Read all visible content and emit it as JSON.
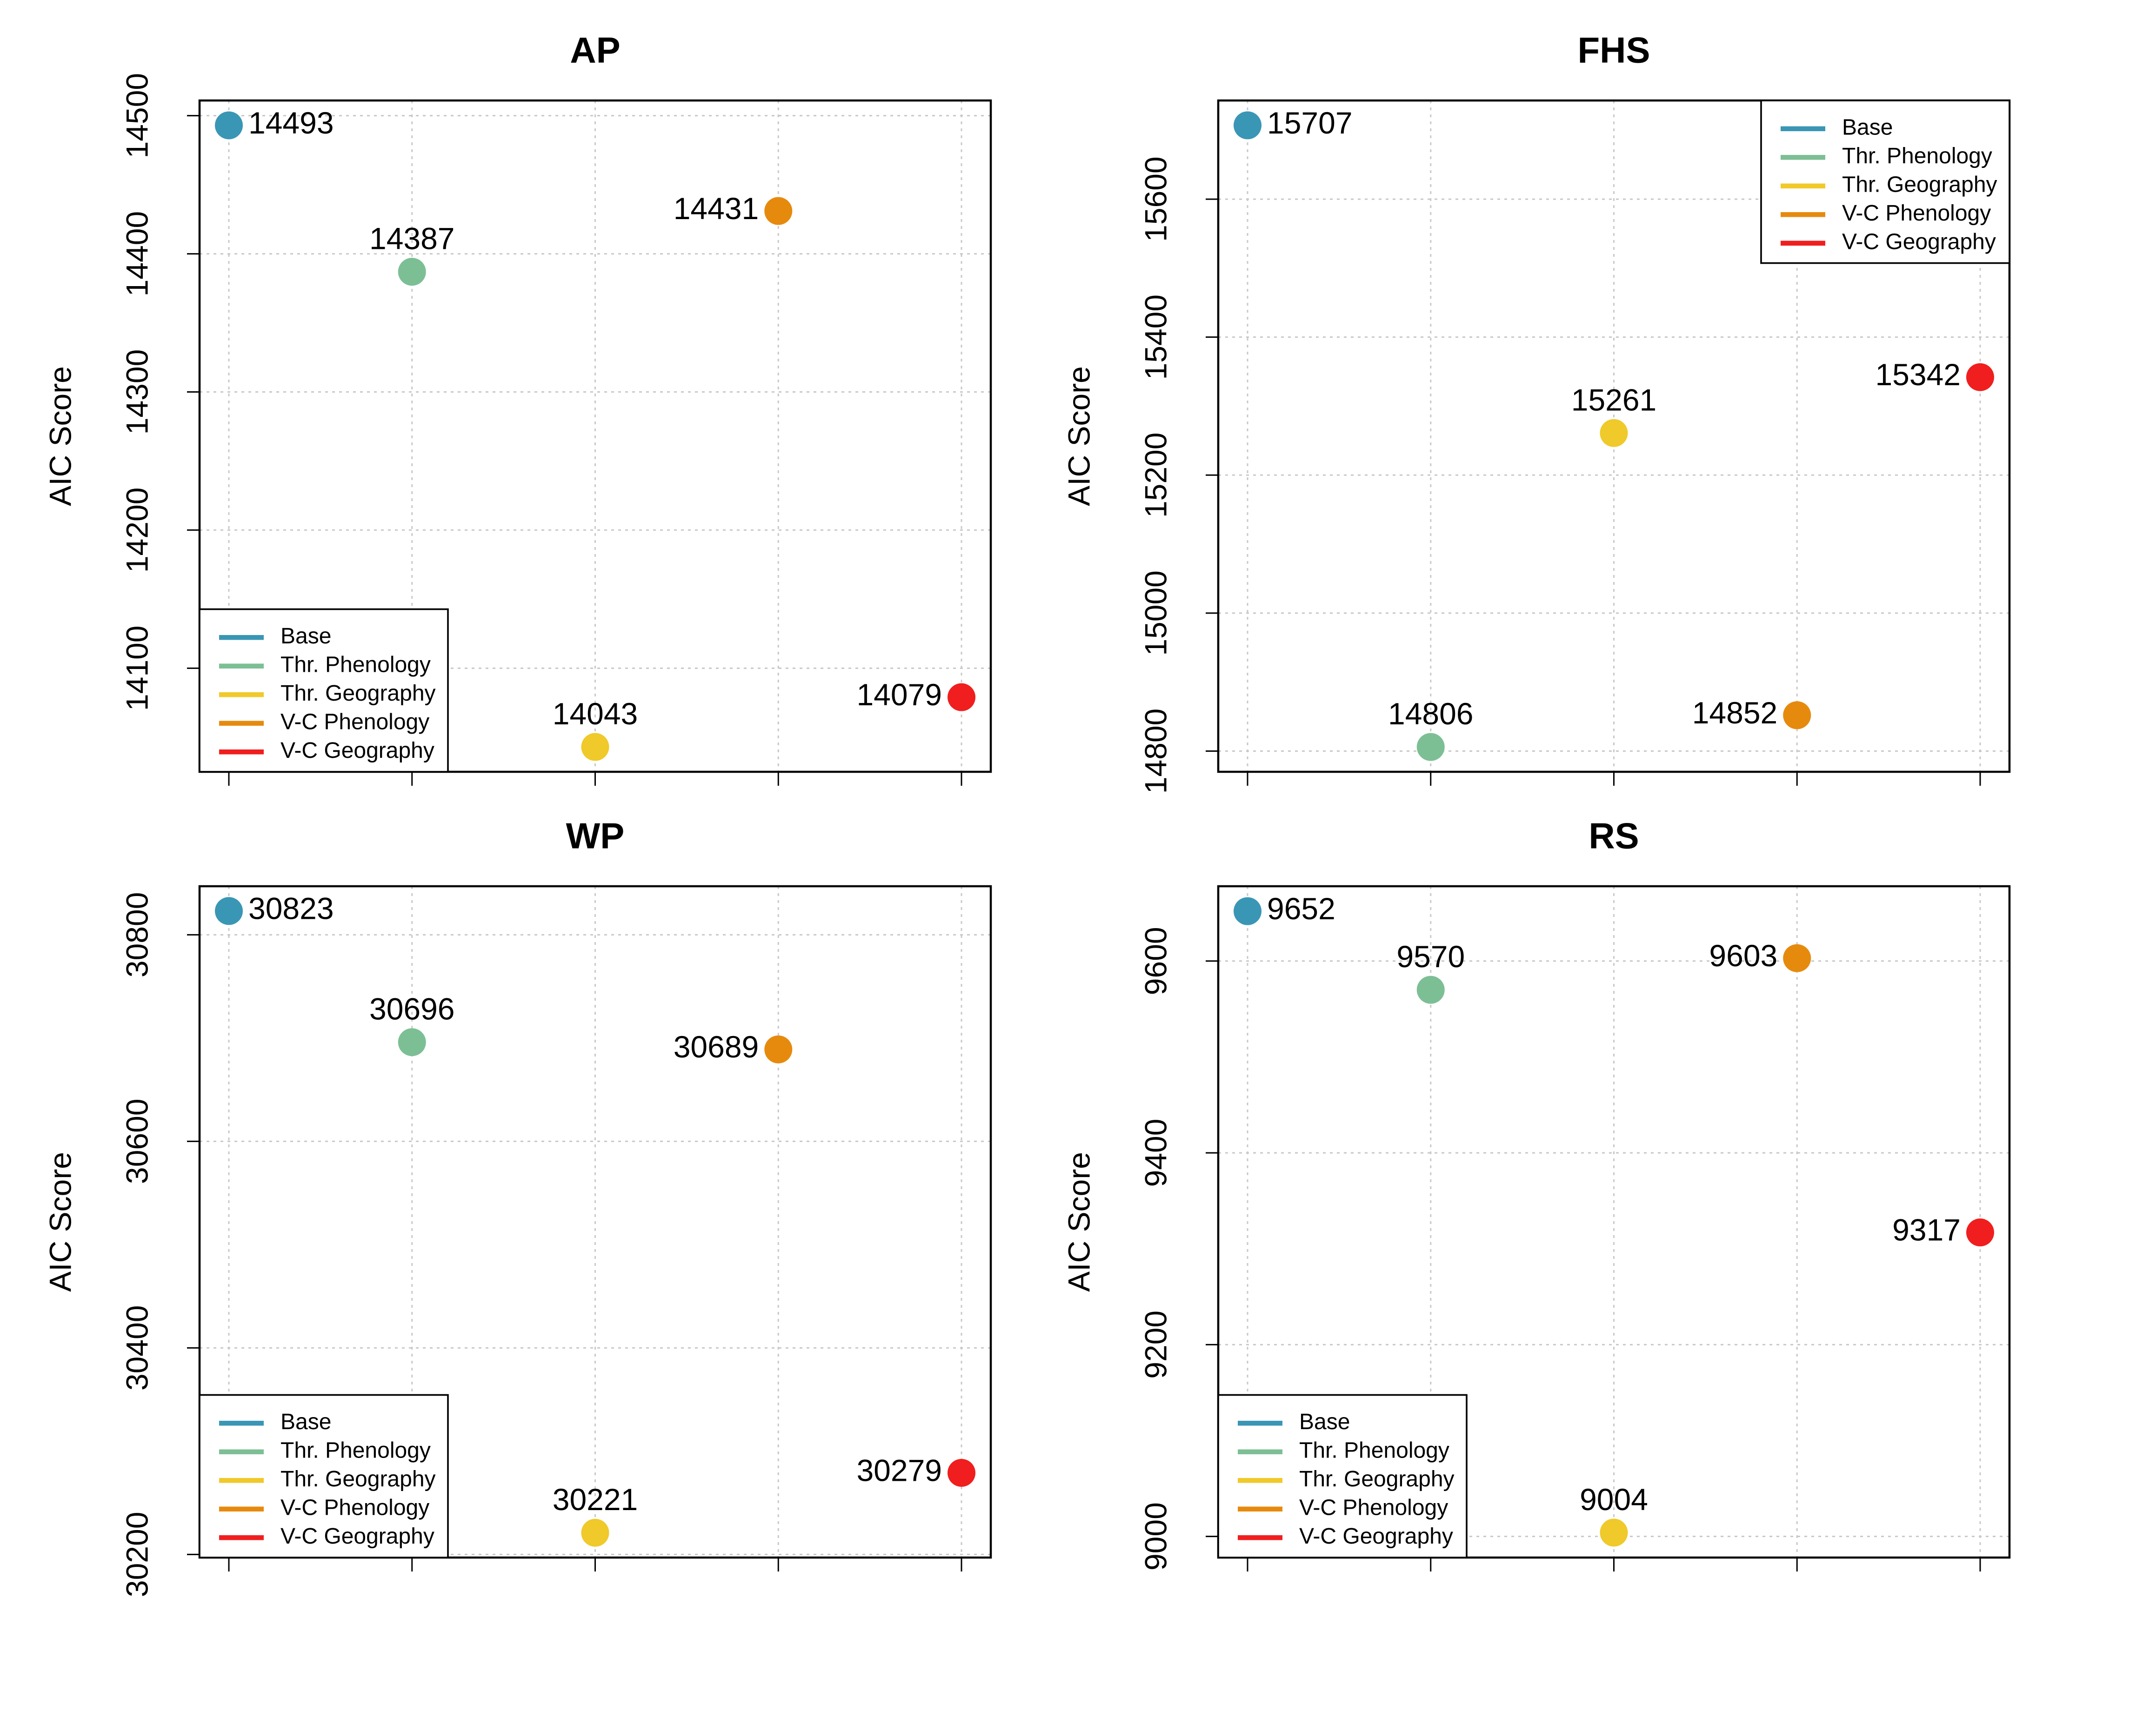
{
  "chart_data": [
    {
      "type": "scatter",
      "title": "AP",
      "y_label": "AIC Score",
      "xlim": [
        0.84,
        5.16
      ],
      "xticks": [
        1,
        2,
        3,
        4,
        5
      ],
      "ylim": [
        14025,
        14511
      ],
      "yticks": [
        14100,
        14200,
        14300,
        14400,
        14500
      ],
      "grid": true,
      "legend": "bottomleft",
      "series": [
        {
          "name": "Base",
          "color": "#3a96b5",
          "x": [
            1
          ],
          "values": [
            14493
          ]
        },
        {
          "name": "Thr. Phenology",
          "color": "#7dbf95",
          "x": [
            2
          ],
          "values": [
            14387
          ]
        },
        {
          "name": "Thr. Geography",
          "color": "#f0c92a",
          "x": [
            3
          ],
          "values": [
            14043
          ]
        },
        {
          "name": "V-C Phenology",
          "color": "#e68a0e",
          "x": [
            4
          ],
          "values": [
            14431
          ]
        },
        {
          "name": "V-C Geography",
          "color": "#f01e1e",
          "x": [
            5
          ],
          "values": [
            14079
          ]
        }
      ]
    },
    {
      "type": "scatter",
      "title": "FHS",
      "y_label": "AIC Score",
      "xlim": [
        0.84,
        5.16
      ],
      "xticks": [
        1,
        2,
        3,
        4,
        5
      ],
      "ylim": [
        14770,
        15743
      ],
      "yticks": [
        14800,
        15000,
        15200,
        15400,
        15600
      ],
      "grid": true,
      "legend": "topright",
      "series": [
        {
          "name": "Base",
          "color": "#3a96b5",
          "x": [
            1
          ],
          "values": [
            15707
          ]
        },
        {
          "name": "Thr. Phenology",
          "color": "#7dbf95",
          "x": [
            2
          ],
          "values": [
            14806
          ]
        },
        {
          "name": "Thr. Geography",
          "color": "#f0c92a",
          "x": [
            3
          ],
          "values": [
            15261
          ]
        },
        {
          "name": "V-C Phenology",
          "color": "#e68a0e",
          "x": [
            4
          ],
          "values": [
            14852
          ]
        },
        {
          "name": "V-C Geography",
          "color": "#f01e1e",
          "x": [
            5
          ],
          "values": [
            15342
          ]
        }
      ]
    },
    {
      "type": "scatter",
      "title": "WP",
      "y_label": "AIC Score",
      "xlim": [
        0.84,
        5.16
      ],
      "xticks": [
        1,
        2,
        3,
        4,
        5
      ],
      "ylim": [
        30197,
        30847
      ],
      "yticks": [
        30200,
        30400,
        30600,
        30800
      ],
      "grid": true,
      "legend": "bottomleft",
      "series": [
        {
          "name": "Base",
          "color": "#3a96b5",
          "x": [
            1
          ],
          "values": [
            30823
          ]
        },
        {
          "name": "Thr. Phenology",
          "color": "#7dbf95",
          "x": [
            2
          ],
          "values": [
            30696
          ]
        },
        {
          "name": "Thr. Geography",
          "color": "#f0c92a",
          "x": [
            3
          ],
          "values": [
            30221
          ]
        },
        {
          "name": "V-C Phenology",
          "color": "#e68a0e",
          "x": [
            4
          ],
          "values": [
            30689
          ]
        },
        {
          "name": "V-C Geography",
          "color": "#f01e1e",
          "x": [
            5
          ],
          "values": [
            30279
          ]
        }
      ]
    },
    {
      "type": "scatter",
      "title": "RS",
      "y_label": "AIC Score",
      "xlim": [
        0.84,
        5.16
      ],
      "xticks": [
        1,
        2,
        3,
        4,
        5
      ],
      "ylim": [
        8978,
        9678
      ],
      "yticks": [
        9000,
        9200,
        9400,
        9600
      ],
      "grid": true,
      "legend": "bottomleft",
      "series": [
        {
          "name": "Base",
          "color": "#3a96b5",
          "x": [
            1
          ],
          "values": [
            9652
          ]
        },
        {
          "name": "Thr. Phenology",
          "color": "#7dbf95",
          "x": [
            2
          ],
          "values": [
            9570
          ]
        },
        {
          "name": "Thr. Geography",
          "color": "#f0c92a",
          "x": [
            3
          ],
          "values": [
            9004
          ]
        },
        {
          "name": "V-C Phenology",
          "color": "#e68a0e",
          "x": [
            4
          ],
          "values": [
            9603
          ]
        },
        {
          "name": "V-C Geography",
          "color": "#f01e1e",
          "x": [
            5
          ],
          "values": [
            9317
          ]
        }
      ]
    }
  ]
}
